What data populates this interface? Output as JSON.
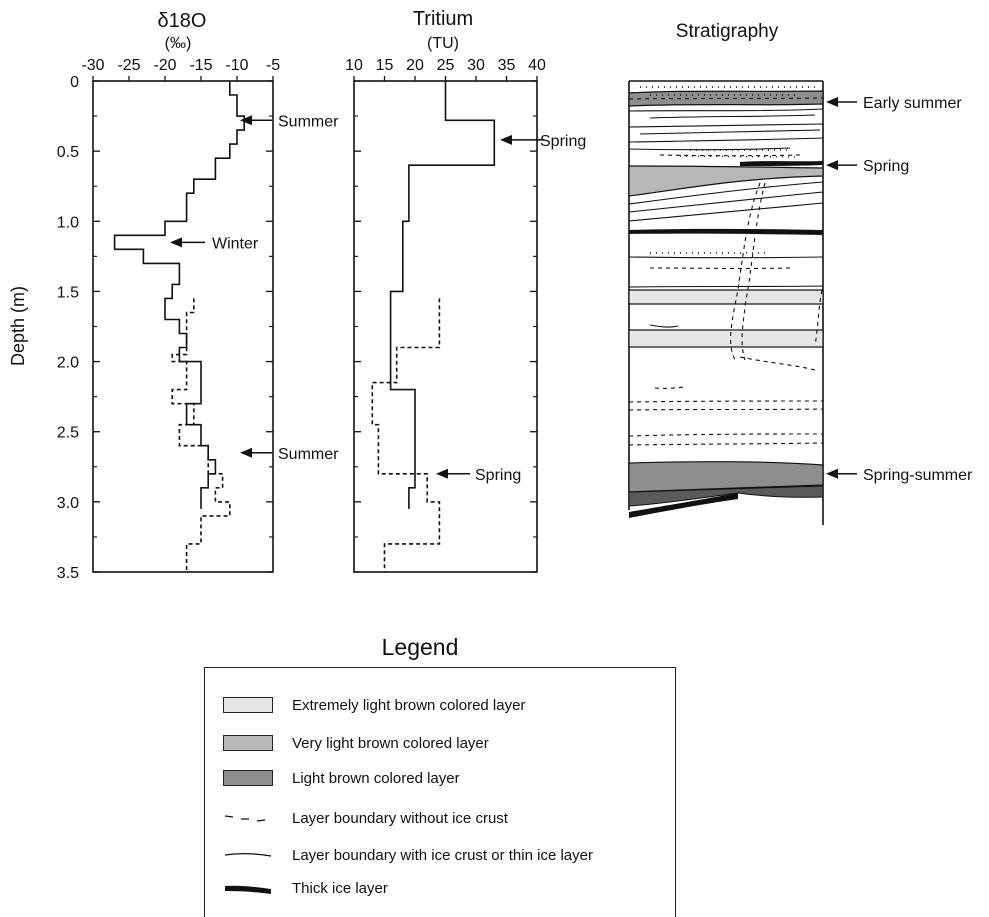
{
  "chart_data": [
    {
      "type": "line",
      "title": "δ18O",
      "subtitle": "(‰)",
      "ylabel": "Depth (m)",
      "xlim": [
        -30,
        -5
      ],
      "ylim": [
        0,
        3.5
      ],
      "x_ticks": [
        "-30",
        "-25",
        "-20",
        "-15",
        "-10",
        "-5"
      ],
      "y_ticks": [
        "0",
        "0.5",
        "1.0",
        "1.5",
        "2.0",
        "2.5",
        "3.0",
        "3.5"
      ],
      "series": [
        {
          "style": "solid",
          "steps": [
            [
              0,
              0.1,
              -11
            ],
            [
              0.1,
              0.25,
              -10
            ],
            [
              0.25,
              0.35,
              -9
            ],
            [
              0.35,
              0.45,
              -10
            ],
            [
              0.45,
              0.55,
              -11
            ],
            [
              0.55,
              0.7,
              -13
            ],
            [
              0.7,
              0.8,
              -16
            ],
            [
              0.8,
              1.0,
              -17
            ],
            [
              1.0,
              1.1,
              -20
            ],
            [
              1.1,
              1.2,
              -27
            ],
            [
              1.2,
              1.3,
              -23
            ],
            [
              1.3,
              1.45,
              -18
            ],
            [
              1.45,
              1.55,
              -19
            ],
            [
              1.55,
              1.7,
              -20
            ],
            [
              1.7,
              1.8,
              -18
            ],
            [
              1.8,
              1.9,
              -17
            ],
            [
              1.9,
              2.0,
              -18
            ],
            [
              2.0,
              2.3,
              -15
            ],
            [
              2.3,
              2.45,
              -17
            ],
            [
              2.45,
              2.6,
              -15
            ],
            [
              2.6,
              2.7,
              -14
            ],
            [
              2.7,
              2.8,
              -13
            ],
            [
              2.8,
              2.9,
              -14
            ],
            [
              2.9,
              3.0,
              -15
            ],
            [
              3.0,
              3.05,
              -15
            ]
          ]
        },
        {
          "style": "dashed",
          "steps": [
            [
              1.55,
              1.65,
              -16
            ],
            [
              1.65,
              1.95,
              -17
            ],
            [
              1.95,
              2.0,
              -19
            ],
            [
              2.0,
              2.2,
              -17
            ],
            [
              2.2,
              2.3,
              -19
            ],
            [
              2.3,
              2.45,
              -16
            ],
            [
              2.45,
              2.6,
              -18
            ],
            [
              2.6,
              2.8,
              -14
            ],
            [
              2.8,
              2.9,
              -12
            ],
            [
              2.9,
              3.0,
              -13
            ],
            [
              3.0,
              3.1,
              -11
            ],
            [
              3.1,
              3.3,
              -15
            ],
            [
              3.3,
              3.5,
              -17
            ]
          ]
        }
      ],
      "annotations": [
        {
          "text": "Summer",
          "depth": 0.28
        },
        {
          "text": "Winter",
          "depth": 1.15
        },
        {
          "text": "Summer",
          "depth": 2.65
        }
      ]
    },
    {
      "type": "line",
      "title": "Tritium",
      "subtitle": "(TU)",
      "xlim": [
        10,
        40
      ],
      "ylim": [
        0,
        3.5
      ],
      "x_ticks": [
        "10",
        "15",
        "20",
        "25",
        "30",
        "35",
        "40"
      ],
      "series": [
        {
          "style": "solid",
          "steps": [
            [
              0,
              0.28,
              25
            ],
            [
              0.28,
              0.6,
              33
            ],
            [
              0.6,
              1.0,
              19
            ],
            [
              1.0,
              1.5,
              18
            ],
            [
              1.5,
              2.2,
              16
            ],
            [
              2.2,
              2.8,
              20
            ],
            [
              2.8,
              2.9,
              20
            ],
            [
              2.9,
              3.05,
              19
            ]
          ]
        },
        {
          "style": "dashed",
          "steps": [
            [
              1.55,
              1.9,
              24
            ],
            [
              1.9,
              2.15,
              17
            ],
            [
              2.15,
              2.45,
              13
            ],
            [
              2.45,
              2.8,
              14
            ],
            [
              2.8,
              3.0,
              22
            ],
            [
              3.0,
              3.3,
              24
            ],
            [
              3.3,
              3.5,
              15
            ]
          ]
        }
      ],
      "annotations": [
        {
          "text": "Spring",
          "depth": 0.42
        },
        {
          "text": "Spring",
          "depth": 2.8
        }
      ]
    },
    {
      "type": "diagram",
      "title": "Stratigraphy",
      "annotations": [
        {
          "text": "Early summer",
          "depth": 0.15
        },
        {
          "text": "Spring",
          "depth": 0.6
        },
        {
          "text": "Spring-summer",
          "depth": 2.8
        }
      ]
    }
  ],
  "legend": {
    "title": "Legend",
    "items": [
      {
        "label": "Extremely light brown colored layer",
        "kind": "swatch",
        "color": "#e6e6e6"
      },
      {
        "label": "Very light brown colored layer",
        "kind": "swatch",
        "color": "#b8b8b8"
      },
      {
        "label": "Light brown colored layer",
        "kind": "swatch",
        "color": "#8e8e8e"
      },
      {
        "label": "Layer boundary without ice crust",
        "kind": "dashed"
      },
      {
        "label": "Layer boundary with ice crust or thin ice layer",
        "kind": "solid"
      },
      {
        "label": "Thick ice layer",
        "kind": "thick"
      }
    ]
  }
}
